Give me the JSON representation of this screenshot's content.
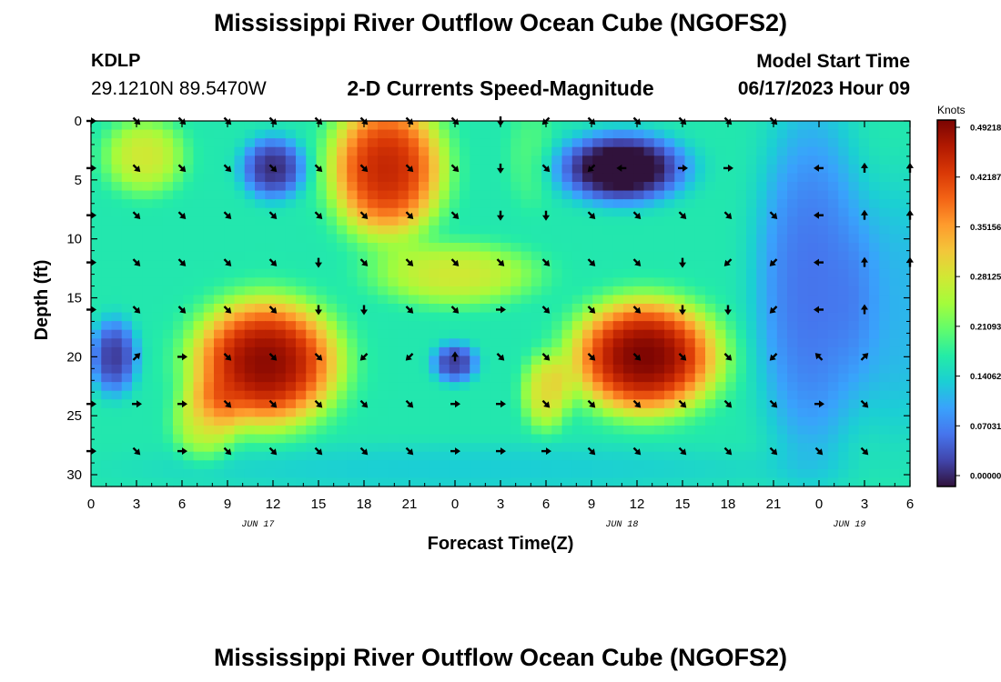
{
  "header": {
    "main_title": "Mississippi River Outflow Ocean Cube (NGOFS2)",
    "station_id": "KDLP",
    "station_coords": "29.1210N  89.5470W",
    "plot_subtitle": "2-D Currents Speed-Magnitude",
    "model_start_label": "Model Start Time",
    "model_start_time": "06/17/2023 Hour 09"
  },
  "footer": {
    "next_title": "Mississippi River Outflow Ocean Cube (NGOFS2)"
  },
  "chart_data": {
    "type": "heatmap",
    "title": "2-D Currents Speed-Magnitude",
    "xlabel": "Forecast Time(Z)",
    "ylabel": "Depth (ft)",
    "x_hours": [
      0,
      54
    ],
    "ylim": [
      0,
      31
    ],
    "y_inverted": true,
    "x_tick_labels": [
      "0",
      "3",
      "6",
      "9",
      "12",
      "15",
      "18",
      "21",
      "0",
      "3",
      "6",
      "9",
      "12",
      "15",
      "18",
      "21",
      "0",
      "3",
      "6"
    ],
    "y_ticks": [
      0,
      5,
      10,
      15,
      20,
      25,
      30
    ],
    "date_labels": [
      {
        "hour": 11,
        "text": "JUN 17"
      },
      {
        "hour": 35,
        "text": "JUN 18"
      },
      {
        "hour": 50,
        "text": "JUN 19"
      }
    ],
    "colorbar": {
      "unit": "Knots",
      "min": 0.0,
      "max": 0.49218,
      "tick_labels": [
        "0.00000",
        "0.07031",
        "0.14062",
        "0.21093",
        "0.28125",
        "0.35156",
        "0.42187",
        "0.49218"
      ],
      "colors": [
        "#30123b",
        "#4145ab",
        "#4675ed",
        "#39a2fc",
        "#1bcfd4",
        "#24eca6",
        "#61fc6c",
        "#a4fc3b",
        "#d1e834",
        "#f3c63a",
        "#fe9b2d",
        "#f36315",
        "#d93806",
        "#b11901",
        "#7a0402"
      ]
    },
    "speed_blobs": [
      {
        "t": 3.5,
        "d": 3,
        "st": 2.5,
        "sd": 3,
        "a": 0.11
      },
      {
        "t": 12,
        "d": 4,
        "st": 2,
        "sd": 2.5,
        "a": -0.15
      },
      {
        "t": 19.5,
        "d": 4,
        "st": 3.5,
        "sd": 5.5,
        "a": 0.27
      },
      {
        "t": 24,
        "d": 13,
        "st": 5,
        "sd": 2.5,
        "a": 0.11
      },
      {
        "t": 11.5,
        "d": 20.5,
        "st": 4.5,
        "sd": 5,
        "a": 0.31
      },
      {
        "t": 7.5,
        "d": 25.5,
        "st": 2,
        "sd": 3,
        "a": 0.1
      },
      {
        "t": 1.5,
        "d": 20,
        "st": 1.5,
        "sd": 3,
        "a": -0.14
      },
      {
        "t": 24,
        "d": 20.5,
        "st": 1.4,
        "sd": 1.6,
        "a": -0.14
      },
      {
        "t": 36.5,
        "d": 20,
        "st": 4.5,
        "sd": 4.5,
        "a": 0.32
      },
      {
        "t": 30,
        "d": 23,
        "st": 1.5,
        "sd": 3,
        "a": 0.12
      },
      {
        "t": 35,
        "d": 4,
        "st": 4,
        "sd": 2.8,
        "a": -0.2
      },
      {
        "t": 47.5,
        "d": 14,
        "st": 3.5,
        "sd": 14,
        "a": -0.1
      },
      {
        "t": 53,
        "d": 16,
        "st": 3,
        "sd": 10,
        "a": -0.05
      },
      {
        "t": 25,
        "d": 29.5,
        "st": 20,
        "sd": 2,
        "a": -0.03
      },
      {
        "t": 29,
        "d": 3,
        "st": 1.5,
        "sd": 4,
        "a": 0.03
      }
    ],
    "background_speed": 0.17,
    "vectors": [
      {
        "t": 0,
        "d": 0,
        "dir": "E"
      },
      {
        "t": 3,
        "d": 0,
        "dir": "SE"
      },
      {
        "t": 6,
        "d": 0,
        "dir": "SE"
      },
      {
        "t": 9,
        "d": 0,
        "dir": "SE"
      },
      {
        "t": 12,
        "d": 0,
        "dir": "SE"
      },
      {
        "t": 15,
        "d": 0,
        "dir": "SE"
      },
      {
        "t": 18,
        "d": 0,
        "dir": "SE"
      },
      {
        "t": 21,
        "d": 0,
        "dir": "SE"
      },
      {
        "t": 24,
        "d": 0,
        "dir": "SE"
      },
      {
        "t": 27,
        "d": 0,
        "dir": "S"
      },
      {
        "t": 30,
        "d": 0,
        "dir": "SW"
      },
      {
        "t": 33,
        "d": 0,
        "dir": "SE"
      },
      {
        "t": 36,
        "d": 0,
        "dir": "SE"
      },
      {
        "t": 39,
        "d": 0,
        "dir": "SE"
      },
      {
        "t": 42,
        "d": 0,
        "dir": "SE"
      },
      {
        "t": 45,
        "d": 0,
        "dir": "SE"
      },
      {
        "t": 0,
        "d": 4,
        "dir": "E"
      },
      {
        "t": 3,
        "d": 4,
        "dir": "SE"
      },
      {
        "t": 6,
        "d": 4,
        "dir": "SE"
      },
      {
        "t": 9,
        "d": 4,
        "dir": "SE"
      },
      {
        "t": 12,
        "d": 4,
        "dir": "SE"
      },
      {
        "t": 15,
        "d": 4,
        "dir": "SE"
      },
      {
        "t": 18,
        "d": 4,
        "dir": "SE"
      },
      {
        "t": 21,
        "d": 4,
        "dir": "SE"
      },
      {
        "t": 24,
        "d": 4,
        "dir": "SE"
      },
      {
        "t": 27,
        "d": 4,
        "dir": "S"
      },
      {
        "t": 30,
        "d": 4,
        "dir": "SE"
      },
      {
        "t": 33,
        "d": 4,
        "dir": "SW"
      },
      {
        "t": 35,
        "d": 4,
        "dir": "W"
      },
      {
        "t": 39,
        "d": 4,
        "dir": "E"
      },
      {
        "t": 42,
        "d": 4,
        "dir": "E"
      },
      {
        "t": 48,
        "d": 4,
        "dir": "W"
      },
      {
        "t": 51,
        "d": 4,
        "dir": "N"
      },
      {
        "t": 54,
        "d": 4,
        "dir": "N"
      },
      {
        "t": 0,
        "d": 8,
        "dir": "E"
      },
      {
        "t": 3,
        "d": 8,
        "dir": "SE"
      },
      {
        "t": 6,
        "d": 8,
        "dir": "SE"
      },
      {
        "t": 9,
        "d": 8,
        "dir": "SE"
      },
      {
        "t": 12,
        "d": 8,
        "dir": "SE"
      },
      {
        "t": 15,
        "d": 8,
        "dir": "SE"
      },
      {
        "t": 18,
        "d": 8,
        "dir": "SE"
      },
      {
        "t": 21,
        "d": 8,
        "dir": "SE"
      },
      {
        "t": 24,
        "d": 8,
        "dir": "SE"
      },
      {
        "t": 27,
        "d": 8,
        "dir": "S"
      },
      {
        "t": 30,
        "d": 8,
        "dir": "S"
      },
      {
        "t": 33,
        "d": 8,
        "dir": "SE"
      },
      {
        "t": 36,
        "d": 8,
        "dir": "SE"
      },
      {
        "t": 39,
        "d": 8,
        "dir": "SE"
      },
      {
        "t": 42,
        "d": 8,
        "dir": "SE"
      },
      {
        "t": 45,
        "d": 8,
        "dir": "SE"
      },
      {
        "t": 48,
        "d": 8,
        "dir": "W"
      },
      {
        "t": 51,
        "d": 8,
        "dir": "N"
      },
      {
        "t": 54,
        "d": 8,
        "dir": "N"
      },
      {
        "t": 0,
        "d": 12,
        "dir": "E"
      },
      {
        "t": 3,
        "d": 12,
        "dir": "SE"
      },
      {
        "t": 6,
        "d": 12,
        "dir": "SE"
      },
      {
        "t": 9,
        "d": 12,
        "dir": "SE"
      },
      {
        "t": 12,
        "d": 12,
        "dir": "SE"
      },
      {
        "t": 15,
        "d": 12,
        "dir": "S"
      },
      {
        "t": 18,
        "d": 12,
        "dir": "SE"
      },
      {
        "t": 21,
        "d": 12,
        "dir": "SE"
      },
      {
        "t": 24,
        "d": 12,
        "dir": "SE"
      },
      {
        "t": 27,
        "d": 12,
        "dir": "SE"
      },
      {
        "t": 30,
        "d": 12,
        "dir": "SE"
      },
      {
        "t": 33,
        "d": 12,
        "dir": "SE"
      },
      {
        "t": 36,
        "d": 12,
        "dir": "SE"
      },
      {
        "t": 39,
        "d": 12,
        "dir": "S"
      },
      {
        "t": 42,
        "d": 12,
        "dir": "SW"
      },
      {
        "t": 45,
        "d": 12,
        "dir": "SW"
      },
      {
        "t": 48,
        "d": 12,
        "dir": "W"
      },
      {
        "t": 51,
        "d": 12,
        "dir": "N"
      },
      {
        "t": 54,
        "d": 12,
        "dir": "N"
      },
      {
        "t": 0,
        "d": 16,
        "dir": "E"
      },
      {
        "t": 3,
        "d": 16,
        "dir": "SE"
      },
      {
        "t": 6,
        "d": 16,
        "dir": "SE"
      },
      {
        "t": 9,
        "d": 16,
        "dir": "SE"
      },
      {
        "t": 12,
        "d": 16,
        "dir": "SE"
      },
      {
        "t": 15,
        "d": 16,
        "dir": "S"
      },
      {
        "t": 18,
        "d": 16,
        "dir": "S"
      },
      {
        "t": 21,
        "d": 16,
        "dir": "SE"
      },
      {
        "t": 24,
        "d": 16,
        "dir": "SE"
      },
      {
        "t": 27,
        "d": 16,
        "dir": "E"
      },
      {
        "t": 30,
        "d": 16,
        "dir": "SE"
      },
      {
        "t": 33,
        "d": 16,
        "dir": "SE"
      },
      {
        "t": 36,
        "d": 16,
        "dir": "SE"
      },
      {
        "t": 39,
        "d": 16,
        "dir": "S"
      },
      {
        "t": 42,
        "d": 16,
        "dir": "S"
      },
      {
        "t": 45,
        "d": 16,
        "dir": "SW"
      },
      {
        "t": 48,
        "d": 16,
        "dir": "W"
      },
      {
        "t": 51,
        "d": 16,
        "dir": "N"
      },
      {
        "t": 3,
        "d": 20,
        "dir": "NE"
      },
      {
        "t": 6,
        "d": 20,
        "dir": "E"
      },
      {
        "t": 9,
        "d": 20,
        "dir": "SE"
      },
      {
        "t": 12,
        "d": 20,
        "dir": "SE"
      },
      {
        "t": 15,
        "d": 20,
        "dir": "SE"
      },
      {
        "t": 18,
        "d": 20,
        "dir": "SW"
      },
      {
        "t": 21,
        "d": 20,
        "dir": "SW"
      },
      {
        "t": 24,
        "d": 20,
        "dir": "N"
      },
      {
        "t": 27,
        "d": 20,
        "dir": "SE"
      },
      {
        "t": 30,
        "d": 20,
        "dir": "SE"
      },
      {
        "t": 33,
        "d": 20,
        "dir": "SE"
      },
      {
        "t": 36,
        "d": 20,
        "dir": "SE"
      },
      {
        "t": 39,
        "d": 20,
        "dir": "SE"
      },
      {
        "t": 42,
        "d": 20,
        "dir": "SE"
      },
      {
        "t": 45,
        "d": 20,
        "dir": "SW"
      },
      {
        "t": 48,
        "d": 20,
        "dir": "NW"
      },
      {
        "t": 51,
        "d": 20,
        "dir": "NE"
      },
      {
        "t": 0,
        "d": 24,
        "dir": "E"
      },
      {
        "t": 3,
        "d": 24,
        "dir": "E"
      },
      {
        "t": 6,
        "d": 24,
        "dir": "E"
      },
      {
        "t": 9,
        "d": 24,
        "dir": "SE"
      },
      {
        "t": 12,
        "d": 24,
        "dir": "SE"
      },
      {
        "t": 15,
        "d": 24,
        "dir": "SE"
      },
      {
        "t": 18,
        "d": 24,
        "dir": "SE"
      },
      {
        "t": 21,
        "d": 24,
        "dir": "SE"
      },
      {
        "t": 24,
        "d": 24,
        "dir": "E"
      },
      {
        "t": 27,
        "d": 24,
        "dir": "E"
      },
      {
        "t": 30,
        "d": 24,
        "dir": "SE"
      },
      {
        "t": 33,
        "d": 24,
        "dir": "SE"
      },
      {
        "t": 36,
        "d": 24,
        "dir": "SE"
      },
      {
        "t": 39,
        "d": 24,
        "dir": "SE"
      },
      {
        "t": 42,
        "d": 24,
        "dir": "SE"
      },
      {
        "t": 45,
        "d": 24,
        "dir": "SE"
      },
      {
        "t": 48,
        "d": 24,
        "dir": "E"
      },
      {
        "t": 51,
        "d": 24,
        "dir": "SE"
      },
      {
        "t": 0,
        "d": 28,
        "dir": "E"
      },
      {
        "t": 3,
        "d": 28,
        "dir": "SE"
      },
      {
        "t": 6,
        "d": 28,
        "dir": "E"
      },
      {
        "t": 9,
        "d": 28,
        "dir": "SE"
      },
      {
        "t": 12,
        "d": 28,
        "dir": "SE"
      },
      {
        "t": 15,
        "d": 28,
        "dir": "SE"
      },
      {
        "t": 18,
        "d": 28,
        "dir": "SE"
      },
      {
        "t": 21,
        "d": 28,
        "dir": "SE"
      },
      {
        "t": 24,
        "d": 28,
        "dir": "E"
      },
      {
        "t": 27,
        "d": 28,
        "dir": "E"
      },
      {
        "t": 30,
        "d": 28,
        "dir": "E"
      },
      {
        "t": 33,
        "d": 28,
        "dir": "SE"
      },
      {
        "t": 36,
        "d": 28,
        "dir": "SE"
      },
      {
        "t": 39,
        "d": 28,
        "dir": "SE"
      },
      {
        "t": 42,
        "d": 28,
        "dir": "SE"
      },
      {
        "t": 45,
        "d": 28,
        "dir": "SE"
      },
      {
        "t": 48,
        "d": 28,
        "dir": "SE"
      },
      {
        "t": 51,
        "d": 28,
        "dir": "SE"
      }
    ]
  }
}
